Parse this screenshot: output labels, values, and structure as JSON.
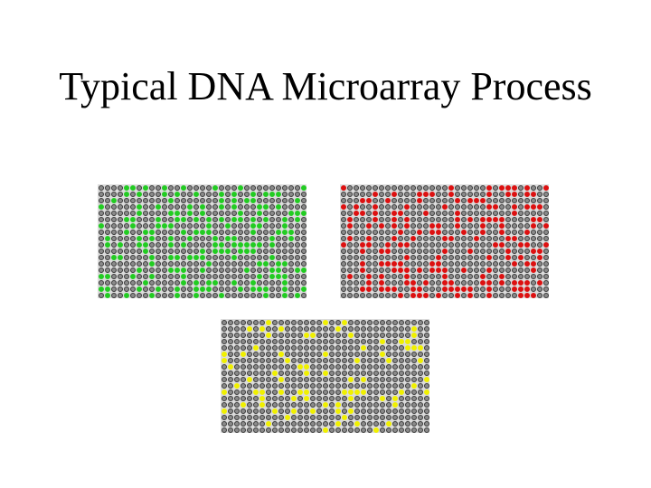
{
  "slide": {
    "title": "Typical DNA Microarray Process"
  },
  "arrays": [
    {
      "id": "green",
      "color": "#22cc22",
      "fraction_lit": 0.28
    },
    {
      "id": "red",
      "color": "#dd1111",
      "fraction_lit": 0.32
    },
    {
      "id": "yellow",
      "color": "#f0f000",
      "fraction_lit": 0.12
    }
  ]
}
